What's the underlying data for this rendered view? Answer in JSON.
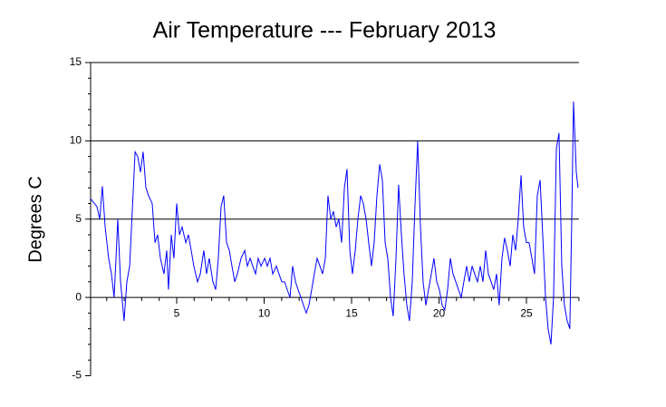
{
  "chart_data": {
    "type": "line",
    "title": "Air Temperature --- February 2013",
    "ylabel": "Degrees C",
    "xlim": [
      0,
      28
    ],
    "ylim": [
      -5,
      15
    ],
    "xticks": [
      5,
      10,
      15,
      20,
      25
    ],
    "yticks": [
      -5,
      0,
      5,
      10,
      15
    ],
    "xminor_ticks": [
      1,
      2,
      3,
      4,
      5,
      6,
      7,
      8,
      9,
      10,
      11,
      12,
      13,
      14,
      15,
      16,
      17,
      18,
      19,
      20,
      21,
      22,
      23,
      24,
      25,
      26,
      27
    ],
    "yminor_ticks": [
      -4,
      -3,
      -2,
      -1,
      1,
      2,
      3,
      4,
      6,
      7,
      8,
      9,
      11,
      12,
      13,
      14
    ],
    "grid": true,
    "x": [
      0.08,
      0.44,
      0.6,
      0.75,
      0.91,
      1.11,
      1.27,
      1.42,
      1.53,
      1.63,
      1.79,
      1.99,
      2.15,
      2.31,
      2.46,
      2.62,
      2.77,
      2.93,
      3.08,
      3.24,
      3.39,
      3.6,
      3.76,
      3.91,
      4.07,
      4.27,
      4.43,
      4.53,
      4.69,
      4.84,
      5.0,
      5.16,
      5.31,
      5.52,
      5.67,
      5.83,
      5.98,
      6.19,
      6.35,
      6.55,
      6.71,
      6.86,
      7.07,
      7.23,
      7.38,
      7.54,
      7.69,
      7.85,
      8.01,
      8.16,
      8.32,
      8.47,
      8.68,
      8.89,
      9.04,
      9.2,
      9.35,
      9.51,
      9.66,
      9.82,
      10.03,
      10.18,
      10.34,
      10.49,
      10.7,
      10.85,
      11.01,
      11.17,
      11.32,
      11.48,
      11.63,
      11.79,
      11.94,
      12.1,
      12.25,
      12.41,
      12.56,
      12.72,
      12.87,
      13.03,
      13.19,
      13.34,
      13.5,
      13.65,
      13.81,
      13.96,
      14.12,
      14.27,
      14.43,
      14.59,
      14.74,
      14.9,
      15.05,
      15.21,
      15.36,
      15.52,
      15.67,
      15.83,
      15.98,
      16.14,
      16.29,
      16.45,
      16.61,
      16.76,
      16.92,
      17.07,
      17.23,
      17.38,
      17.54,
      17.69,
      17.85,
      18.0,
      18.16,
      18.31,
      18.47,
      18.63,
      18.78,
      18.94,
      19.09,
      19.25,
      19.4,
      19.56,
      19.71,
      19.87,
      20.02,
      20.18,
      20.33,
      20.49,
      20.65,
      20.8,
      20.96,
      21.11,
      21.27,
      21.42,
      21.58,
      21.73,
      21.89,
      22.04,
      22.2,
      22.36,
      22.51,
      22.67,
      22.82,
      22.98,
      23.13,
      23.29,
      23.44,
      23.6,
      23.75,
      23.91,
      24.07,
      24.22,
      24.38,
      24.53,
      24.69,
      24.84,
      25.0,
      25.15,
      25.31,
      25.46,
      25.62,
      25.78,
      25.93,
      26.09,
      26.24,
      26.4,
      26.55,
      26.71,
      26.86,
      27.02,
      27.17,
      27.33,
      27.48,
      27.59,
      27.69,
      27.85,
      27.95
    ],
    "series": [
      {
        "color": "#0000ff",
        "values": [
          6.3,
          5.8,
          5.0,
          7.1,
          4.5,
          2.5,
          1.5,
          0.0,
          2.5,
          5.0,
          1.0,
          -1.5,
          1.0,
          2.0,
          5.5,
          9.3,
          9.0,
          8.0,
          9.3,
          7.0,
          6.5,
          6.0,
          3.5,
          4.0,
          2.5,
          1.5,
          3.0,
          0.5,
          4.0,
          2.5,
          6.0,
          4.0,
          4.5,
          3.5,
          4.0,
          3.0,
          2.0,
          1.0,
          1.5,
          3.0,
          1.5,
          2.5,
          1.0,
          0.5,
          2.5,
          5.8,
          6.5,
          3.5,
          3.0,
          2.0,
          1.0,
          1.5,
          2.5,
          3.0,
          2.0,
          2.5,
          2.0,
          1.5,
          2.5,
          2.0,
          2.5,
          2.0,
          2.5,
          1.5,
          2.0,
          1.5,
          1.0,
          1.0,
          0.5,
          0.0,
          2.0,
          1.0,
          0.5,
          0.0,
          -0.5,
          -1.0,
          -0.5,
          0.5,
          1.5,
          2.5,
          2.0,
          1.5,
          2.5,
          6.5,
          5.0,
          5.5,
          4.5,
          5.0,
          3.5,
          7.0,
          8.2,
          3.0,
          1.5,
          3.0,
          5.0,
          6.5,
          6.0,
          5.0,
          3.5,
          2.0,
          3.5,
          6.5,
          8.5,
          7.5,
          3.5,
          2.5,
          0.0,
          -1.2,
          2.5,
          7.2,
          4.0,
          1.5,
          -0.5,
          -1.5,
          1.0,
          6.0,
          10.0,
          4.5,
          1.0,
          -0.5,
          0.5,
          1.5,
          2.5,
          1.0,
          0.5,
          -0.5,
          -0.8,
          0.5,
          2.5,
          1.5,
          1.0,
          0.5,
          0.0,
          1.0,
          2.0,
          1.0,
          2.0,
          1.5,
          1.0,
          2.0,
          1.0,
          3.0,
          1.5,
          1.0,
          0.5,
          1.5,
          -0.5,
          2.5,
          3.8,
          3.0,
          2.0,
          4.0,
          3.0,
          5.0,
          7.8,
          4.5,
          3.5,
          3.5,
          2.5,
          1.5,
          6.5,
          7.5,
          4.0,
          0.0,
          -2.0,
          -3.0,
          0.0,
          9.5,
          10.5,
          2.0,
          -0.5,
          -1.5,
          -2.0,
          5.0,
          12.5,
          8.0,
          7.0
        ]
      }
    ]
  }
}
